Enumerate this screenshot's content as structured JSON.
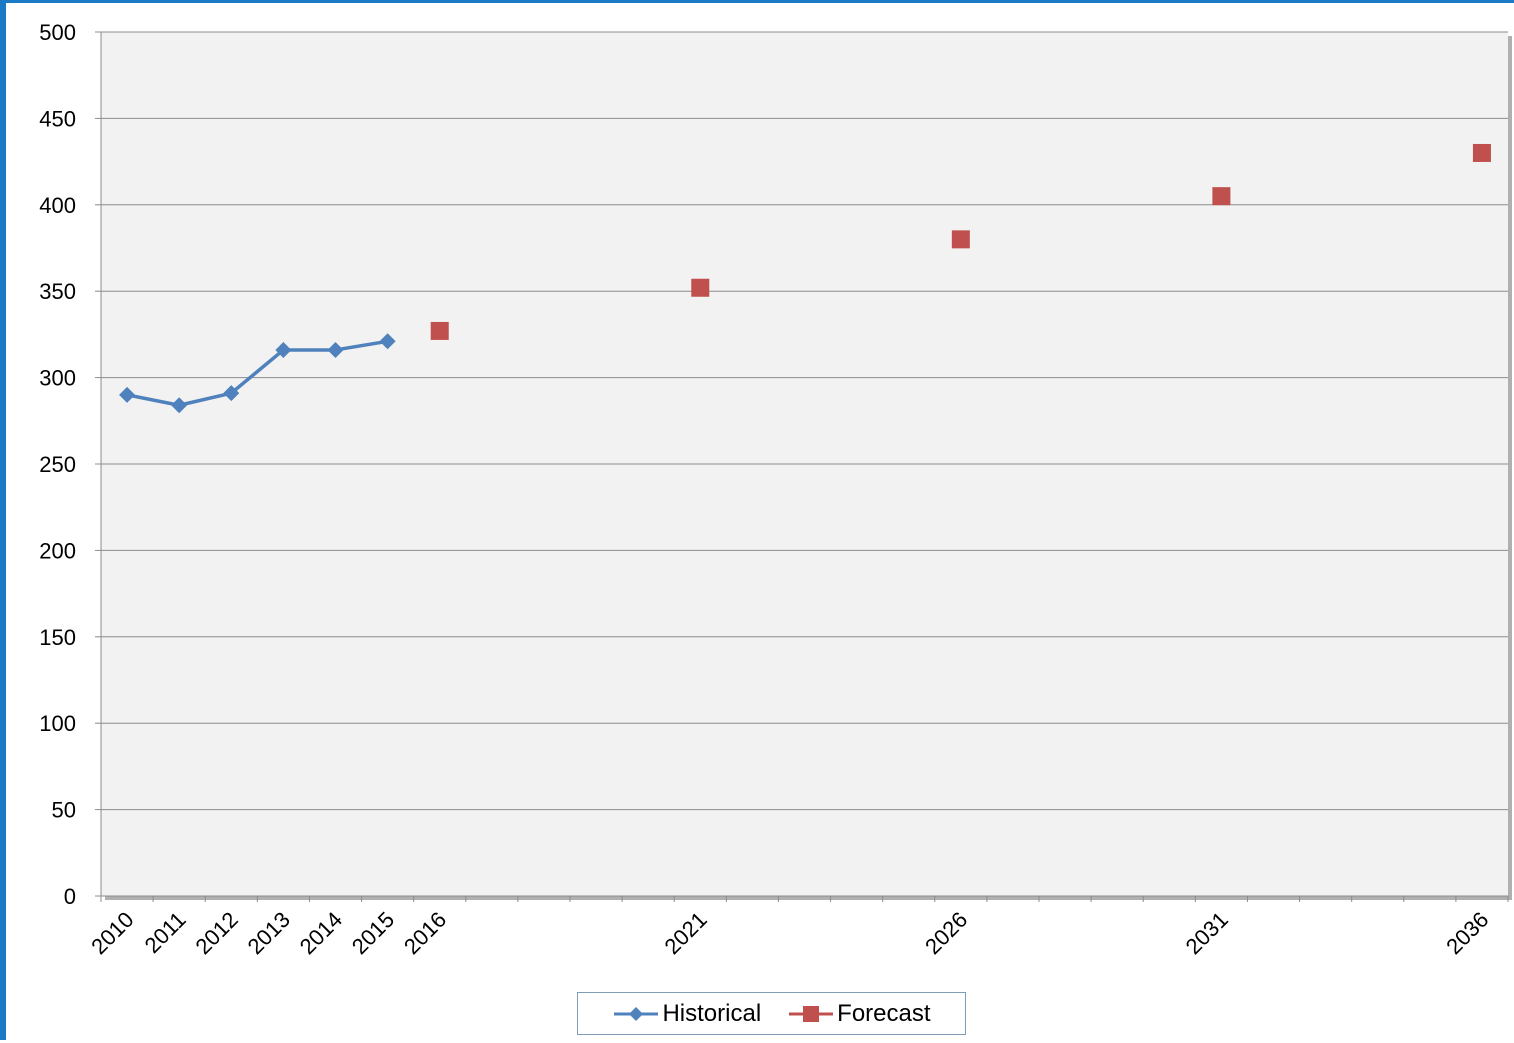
{
  "chart_data": {
    "type": "line",
    "title": "",
    "xlabel": "",
    "ylabel": "",
    "ylim": [
      0,
      500
    ],
    "yticks": [
      0,
      50,
      100,
      150,
      200,
      250,
      300,
      350,
      400,
      450,
      500
    ],
    "xrange": [
      2009.5,
      2036.5
    ],
    "xtick_labels": [
      "2010",
      "2011",
      "2012",
      "2013",
      "2014",
      "2015",
      "2016",
      "2021",
      "2026",
      "2031",
      "2036"
    ],
    "grid": true,
    "legend_position": "bottom",
    "series": [
      {
        "name": "Historical",
        "color": "#4f81bd",
        "marker": "diamond",
        "line": true,
        "x": [
          2010,
          2011,
          2012,
          2013,
          2014,
          2015
        ],
        "y": [
          290,
          284,
          291,
          316,
          316,
          321
        ]
      },
      {
        "name": "Forecast",
        "color": "#c0504d",
        "marker": "square",
        "line": false,
        "x": [
          2016,
          2021,
          2026,
          2031,
          2036
        ],
        "y": [
          327,
          352,
          380,
          405,
          430
        ]
      }
    ]
  },
  "legend": {
    "historical_label": "Historical",
    "forecast_label": "Forecast"
  }
}
